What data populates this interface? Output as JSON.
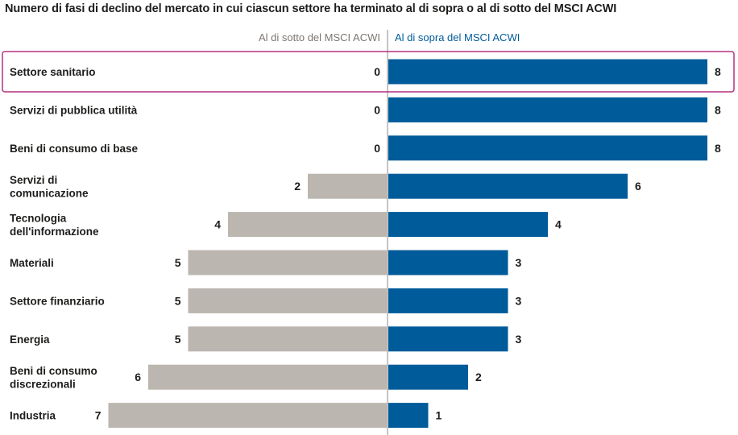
{
  "title": "Numero di fasi di declino del mercato in cui ciascun settore ha terminato al di sopra o al di sotto del MSCI ACWI",
  "colors": {
    "below": "#bcb6b0",
    "above": "#005b9a",
    "highlight": "#b5317e",
    "axis": "#8a8a8a"
  },
  "chart_data": {
    "type": "bar",
    "orientation": "horizontal-diverging",
    "title": "Numero di fasi di declino del mercato in cui ciascun settore ha terminato al di sopra o al di sotto del MSCI ACWI",
    "highlighted_category": "Settore sanitario",
    "categories": [
      [
        "Settore sanitario"
      ],
      [
        "Servizi di pubblica utilità"
      ],
      [
        "Beni di consumo di base"
      ],
      [
        "Servizi di",
        "comunicazione"
      ],
      [
        "Tecnologia",
        "dell'informazione"
      ],
      [
        "Materiali"
      ],
      [
        "Settore finanziario"
      ],
      [
        "Energia"
      ],
      [
        "Beni di consumo",
        "discrezionali"
      ],
      [
        "Industria"
      ]
    ],
    "series": [
      {
        "name": "Al di sotto del MSCI ACWI",
        "values": [
          0,
          0,
          0,
          2,
          4,
          5,
          5,
          5,
          6,
          7
        ]
      },
      {
        "name": "Al di sopra del MSCI ACWI",
        "values": [
          8,
          8,
          8,
          6,
          4,
          3,
          3,
          3,
          2,
          1
        ]
      }
    ]
  }
}
